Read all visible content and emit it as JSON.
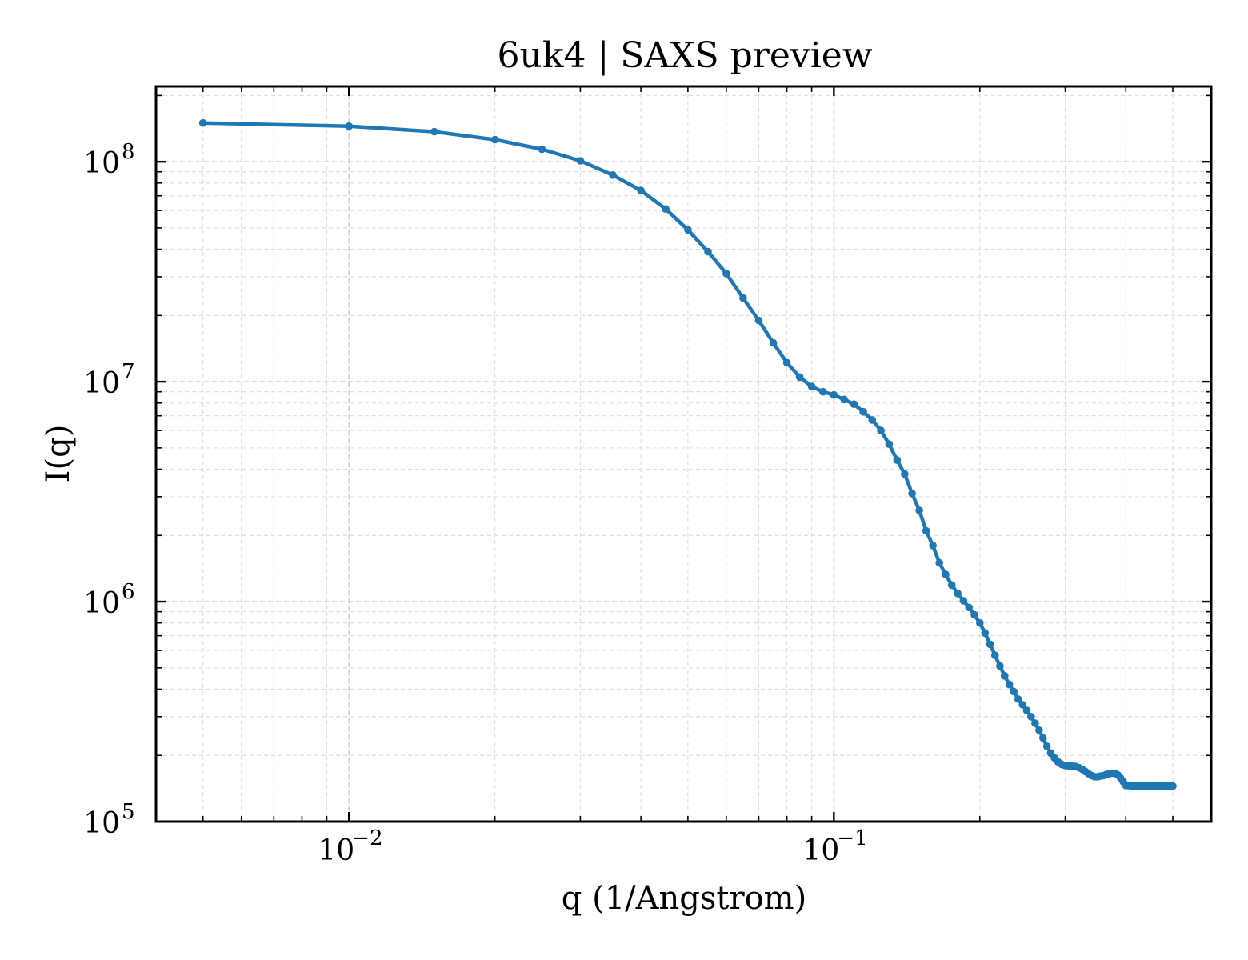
{
  "chart_data": {
    "type": "line",
    "title": "6uk4 | SAXS preview",
    "xlabel": "q (1/Angstrom)",
    "ylabel": "I(q)",
    "xscale": "log",
    "yscale": "log",
    "xlim": [
      0.004,
      0.6
    ],
    "ylim": [
      100000,
      220000000
    ],
    "grid": true,
    "legend": "none",
    "x_ticks": [
      {
        "value": 0.01,
        "base": "10",
        "exp": "−2"
      },
      {
        "value": 0.1,
        "base": "10",
        "exp": "−1"
      }
    ],
    "y_ticks": [
      {
        "value": 100000,
        "base": "10",
        "exp": "5"
      },
      {
        "value": 1000000,
        "base": "10",
        "exp": "6"
      },
      {
        "value": 10000000,
        "base": "10",
        "exp": "7"
      },
      {
        "value": 100000000,
        "base": "10",
        "exp": "8"
      }
    ],
    "series": [
      {
        "color": "#1f77b4",
        "marker": "dot",
        "x": [
          0.005,
          0.01,
          0.015,
          0.02,
          0.025,
          0.03,
          0.035,
          0.04,
          0.045,
          0.05,
          0.055,
          0.06,
          0.065,
          0.07,
          0.075,
          0.08,
          0.085,
          0.09,
          0.095,
          0.1,
          0.105,
          0.11,
          0.115,
          0.12,
          0.125,
          0.13,
          0.135,
          0.14,
          0.145,
          0.15,
          0.155,
          0.16,
          0.165,
          0.17,
          0.175,
          0.18,
          0.185,
          0.19,
          0.195,
          0.2,
          0.205,
          0.21,
          0.215,
          0.22,
          0.225,
          0.23,
          0.235,
          0.24,
          0.245,
          0.25,
          0.255,
          0.26,
          0.265,
          0.27,
          0.275,
          0.28,
          0.285,
          0.29,
          0.295,
          0.3,
          0.305,
          0.31,
          0.315,
          0.32,
          0.325,
          0.33,
          0.335,
          0.34,
          0.345,
          0.35,
          0.355,
          0.36,
          0.365,
          0.37,
          0.375,
          0.38,
          0.385,
          0.39,
          0.395,
          0.4,
          0.405,
          0.41,
          0.415,
          0.42,
          0.425,
          0.43,
          0.435,
          0.44,
          0.445,
          0.45,
          0.455,
          0.46,
          0.465,
          0.47,
          0.475,
          0.48,
          0.485,
          0.49,
          0.495,
          0.5
        ],
        "y": [
          150000000,
          145000000,
          137000000,
          126000000,
          114000000,
          101000000,
          87000000,
          74000000,
          61000000,
          49000000,
          39000000,
          31000000,
          24000000,
          19000000,
          15000000,
          12200000,
          10500000,
          9500000,
          9000000,
          8700000,
          8300000,
          7900000,
          7300000,
          6700000,
          6000000,
          5200000,
          4400000,
          3800000,
          3100000,
          2600000,
          2100000,
          1800000,
          1500000,
          1330000,
          1190000,
          1090000,
          1010000,
          940000,
          870000,
          800000,
          720000,
          640000,
          570000,
          510000,
          460000,
          420000,
          390000,
          360000,
          340000,
          320000,
          300000,
          280000,
          260000,
          240000,
          220000,
          205000,
          195000,
          187000,
          182000,
          180000,
          179000,
          179000,
          178000,
          176000,
          173000,
          169000,
          165000,
          162000,
          160000,
          160000,
          161000,
          162000,
          164000,
          165000,
          166000,
          166000,
          163000,
          158000,
          152000,
          146000,
          146000,
          145000,
          145000,
          145000,
          145000,
          145000,
          145000,
          145000,
          145000,
          145000,
          145000,
          145000,
          145000,
          145000,
          145000,
          145000,
          145000,
          145000,
          145000,
          145000
        ]
      }
    ]
  }
}
